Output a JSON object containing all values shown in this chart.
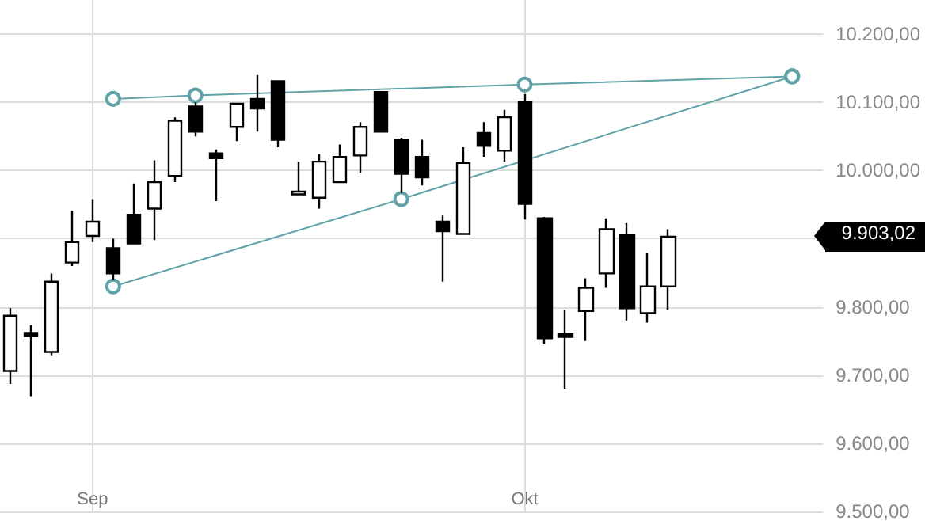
{
  "chart_data": {
    "type": "candlestick",
    "categories": [
      null,
      null,
      null,
      null,
      "Sep",
      null,
      null,
      null,
      null,
      null,
      null,
      null,
      null,
      null,
      null,
      null,
      null,
      null,
      null,
      null,
      null,
      null,
      null,
      null,
      null,
      "Okt",
      null,
      null,
      null,
      null,
      null,
      null,
      null,
      null,
      null,
      null,
      null,
      null,
      null,
      null
    ],
    "ohlc": [
      [
        9706,
        9798,
        9687,
        9787
      ],
      [
        9762,
        9773,
        9669,
        9757
      ],
      [
        9734,
        9849,
        9729,
        9837
      ],
      [
        9865,
        9941,
        9860,
        9895
      ],
      [
        9904,
        9958,
        9895,
        9925
      ],
      [
        9886,
        9900,
        9840,
        9849
      ],
      [
        9935,
        9981,
        9893,
        9893
      ],
      [
        9944,
        10015,
        9898,
        9983
      ],
      [
        9992,
        10078,
        9983,
        10073
      ],
      [
        10094,
        10100,
        10050,
        10057
      ],
      [
        10025,
        10031,
        9955,
        10018
      ],
      [
        10064,
        10098,
        10043,
        10098
      ],
      [
        10105,
        10140,
        10057,
        10091
      ],
      [
        10131,
        10131,
        10034,
        10045
      ],
      [
        9965,
        10013,
        9965,
        9969
      ],
      [
        9960,
        10024,
        9944,
        10013
      ],
      [
        9983,
        10038,
        9983,
        10020
      ],
      [
        10022,
        10071,
        9997,
        10064
      ],
      [
        10115,
        10115,
        10057,
        10057
      ],
      [
        10045,
        10048,
        9967,
        9995
      ],
      [
        10020,
        10045,
        9978,
        9990
      ],
      [
        9925,
        9934,
        9837,
        9911
      ],
      [
        9907,
        10034,
        9907,
        10011
      ],
      [
        10055,
        10071,
        10020,
        10036
      ],
      [
        10029,
        10089,
        10013,
        10078
      ],
      [
        10101,
        10112,
        9928,
        9951
      ],
      [
        9930,
        9932,
        9745,
        9754
      ],
      [
        9760,
        9796,
        9680,
        9756
      ],
      [
        9794,
        9842,
        9750,
        9828
      ],
      [
        9849,
        9930,
        9828,
        9914
      ],
      [
        9905,
        9923,
        9780,
        9798
      ],
      [
        9791,
        9879,
        9777,
        9830
      ],
      [
        9830,
        9914,
        9796,
        9903.02
      ],
      null,
      null,
      null,
      null,
      null,
      null,
      null
    ],
    "color": "#000000",
    "series": [
      {
        "type": "line",
        "color": "#5fa3a8",
        "values": [
          null,
          null,
          null,
          null,
          null,
          10105,
          null,
          null,
          null,
          10110,
          null,
          null,
          null,
          null,
          null,
          null,
          null,
          null,
          null,
          null,
          null,
          null,
          null,
          null,
          null,
          10126,
          null,
          null,
          null,
          null,
          null,
          null,
          null,
          null,
          null,
          null,
          null,
          null,
          10138,
          null
        ]
      },
      {
        "type": "line",
        "color": "#5fa3a8",
        "values": [
          null,
          null,
          null,
          null,
          null,
          9830,
          null,
          null,
          null,
          null,
          null,
          null,
          null,
          null,
          null,
          null,
          null,
          null,
          null,
          9958,
          null,
          null,
          null,
          null,
          null,
          null,
          null,
          null,
          null,
          null,
          null,
          null,
          null,
          null,
          null,
          null,
          null,
          null,
          10138,
          null
        ]
      }
    ],
    "marker": "circle",
    "ylim": [
      9500,
      10250
    ],
    "yticks": [
      {
        "value": 9500,
        "label": "9.500,00"
      },
      {
        "value": 9600,
        "label": "9.600,00"
      },
      {
        "value": 9700,
        "label": "9.700,00"
      },
      {
        "value": 9800,
        "label": "9.800,00"
      },
      {
        "value": 9900,
        "label": null
      },
      {
        "value": 10000,
        "label": "10.000,00"
      },
      {
        "value": 10100,
        "label": "10.100,00"
      },
      {
        "value": 10200,
        "label": "10.200,00"
      }
    ],
    "grid": true,
    "annotations": [
      "9.903,02"
    ]
  }
}
